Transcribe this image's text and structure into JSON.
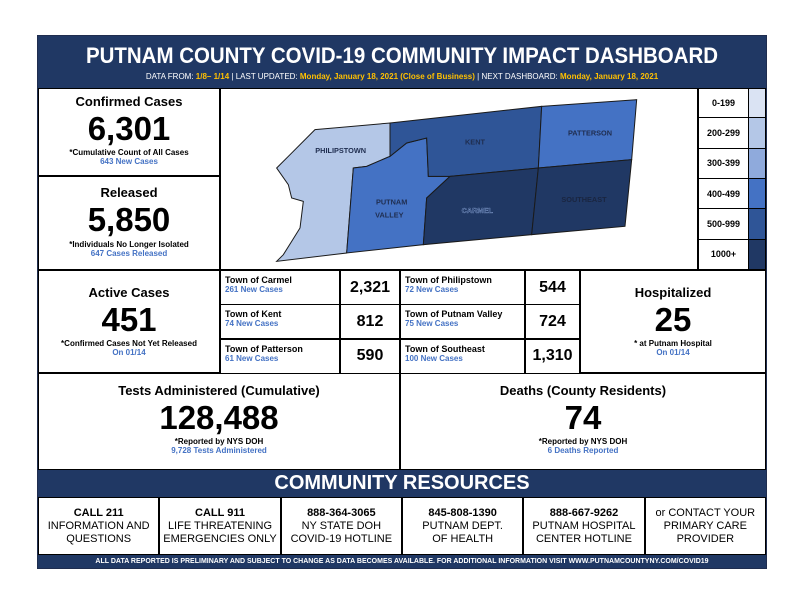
{
  "header": {
    "title": "PUTNAM COUNTY COVID-19 COMMUNITY IMPACT DASHBOARD",
    "data_from_label": "DATA FROM:",
    "data_from": "1/8– 1/14",
    "last_updated_label": "| LAST UPDATED:",
    "last_updated": "Monday, January 18, 2021 (Close of Business)",
    "next_label": "| NEXT DASHBOARD:",
    "next": "Monday, January 18, 2021"
  },
  "confirmed": {
    "title": "Confirmed Cases",
    "value": "6,301",
    "note": "*Cumulative Count of All Cases",
    "sub": "643 New Cases"
  },
  "released": {
    "title": "Released",
    "value": "5,850",
    "note": "*Individuals No Longer Isolated",
    "sub": "647 Cases Released"
  },
  "active": {
    "title": "Active Cases",
    "value": "451",
    "note": "*Confirmed Cases Not Yet Released",
    "sub": "On 01/14"
  },
  "hospitalized": {
    "title": "Hospitalized",
    "value": "25",
    "note": "* at Putnam Hospital",
    "sub": "On 01/14"
  },
  "tests": {
    "title": "Tests Administered (Cumulative)",
    "value": "128,488",
    "note": "*Reported by NYS DOH",
    "sub": "9,728 Tests Administered"
  },
  "deaths": {
    "title": "Deaths (County Residents)",
    "value": "74",
    "note": "*Reported by NYS DOH",
    "sub": "6 Deaths Reported"
  },
  "map": {
    "labels": {
      "philipstown": "PHILIPSTOWN",
      "kent": "KENT",
      "patterson": "PATTERSON",
      "putnam_valley_1": "PUTNAM",
      "putnam_valley_2": "VALLEY",
      "carmel": "CARMEL",
      "southeast": "SOUTHEAST"
    },
    "colors": {
      "philipstown": "#b4c7e7",
      "putnam_valley": "#4472c4",
      "kent": "#2f5597",
      "patterson": "#4472c4",
      "carmel": "#203864",
      "southeast": "#203864"
    }
  },
  "legend": [
    {
      "label": "0-199",
      "color": "#dae3f3"
    },
    {
      "label": "200-299",
      "color": "#b4c7e7"
    },
    {
      "label": "300-399",
      "color": "#8faadc"
    },
    {
      "label": "400-499",
      "color": "#4472c4"
    },
    {
      "label": "500-999",
      "color": "#2f5597"
    },
    {
      "label": "1000+",
      "color": "#203864"
    }
  ],
  "towns": [
    {
      "name": "Town of Carmel",
      "new": "261 New Cases",
      "value": "2,321"
    },
    {
      "name": "Town of Philipstown",
      "new": "72 New Cases",
      "value": "544"
    },
    {
      "name": "Town of Kent",
      "new": "74 New Cases",
      "value": "812"
    },
    {
      "name": "Town of Putnam Valley",
      "new": "75 New Cases",
      "value": "724"
    },
    {
      "name": "Town of Patterson",
      "new": "61 New Cases",
      "value": "590"
    },
    {
      "name": "Town of Southeast",
      "new": "100 New Cases",
      "value": "1,310"
    }
  ],
  "resources_title": "COMMUNITY RESOURCES",
  "resources": [
    {
      "head": "CALL 211",
      "l1": "INFORMATION AND",
      "l2": "QUESTIONS"
    },
    {
      "head": "CALL 911",
      "l1": "LIFE THREATENING",
      "l2": "EMERGENCIES ONLY"
    },
    {
      "head": "888-364-3065",
      "l1": "NY STATE DOH",
      "l2": "COVID-19 HOTLINE"
    },
    {
      "head": "845-808-1390",
      "l1": "PUTNAM DEPT.",
      "l2": "OF HEALTH"
    },
    {
      "head": "888-667-9262",
      "l1": "PUTNAM HOSPITAL",
      "l2": "CENTER HOTLINE"
    },
    {
      "head": "",
      "l0": "or CONTACT YOUR",
      "l1": "PRIMARY CARE",
      "l2": "PROVIDER"
    }
  ],
  "footer": "ALL DATA REPORTED IS PRELIMINARY AND SUBJECT TO CHANGE AS DATA BECOMES AVAILABLE. FOR ADDITIONAL INFORMATION VISIT WWW.PUTNAMCOUNTYNY.COM/COVID19"
}
